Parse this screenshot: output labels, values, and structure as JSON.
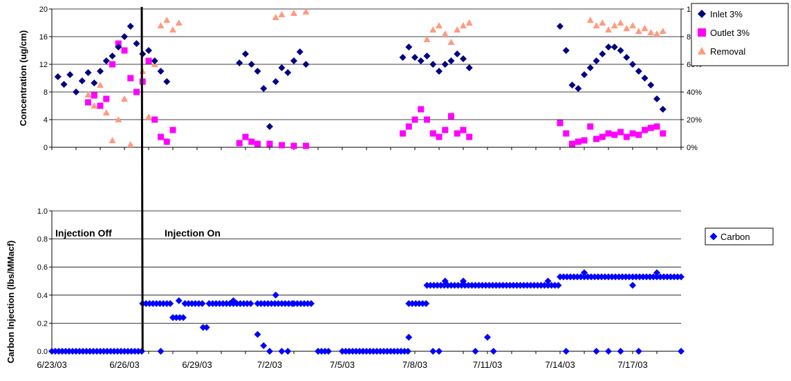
{
  "chart_data": [
    {
      "type": "scatter",
      "ylabel": "Concentration (ug/cm)",
      "ylim": [
        0,
        20
      ],
      "yticks": [
        "0",
        "4",
        "8",
        "12",
        "16",
        "20"
      ],
      "y2lim": [
        0,
        100
      ],
      "y2ticks": [
        "0%",
        "20%",
        "40%",
        "60%",
        "80%",
        "100%"
      ],
      "xlim": [
        "6/23/03",
        "7/19/03"
      ],
      "grid": true,
      "legend_position": "right",
      "series": [
        {
          "name": "Inlet 3%",
          "color": "#000080",
          "marker": "diamond",
          "axis": "left",
          "points": [
            [
              "6/23/03 06:00",
              10.2
            ],
            [
              "6/23/03 12:00",
              9.1
            ],
            [
              "6/23/03 18:00",
              10.5
            ],
            [
              "6/24/03 00:00",
              8.0
            ],
            [
              "6/24/03 06:00",
              9.6
            ],
            [
              "6/24/03 12:00",
              10.8
            ],
            [
              "6/24/03 18:00",
              9.3
            ],
            [
              "6/25/03 00:00",
              11.0
            ],
            [
              "6/25/03 06:00",
              12.5
            ],
            [
              "6/25/03 12:00",
              13.2
            ],
            [
              "6/25/03 18:00",
              14.5
            ],
            [
              "6/26/03 00:00",
              16.0
            ],
            [
              "6/26/03 06:00",
              17.5
            ],
            [
              "6/26/03 12:00",
              15.0
            ],
            [
              "6/26/03 18:00",
              13.5
            ],
            [
              "6/27/03 00:00",
              14.0
            ],
            [
              "6/27/03 06:00",
              12.5
            ],
            [
              "6/27/03 12:00",
              11.0
            ],
            [
              "6/27/03 18:00",
              9.5
            ],
            [
              "6/30/03 18:00",
              12.2
            ],
            [
              "7/1/03 00:00",
              13.5
            ],
            [
              "7/1/03 06:00",
              12.0
            ],
            [
              "7/1/03 12:00",
              11.0
            ],
            [
              "7/1/03 18:00",
              8.5
            ],
            [
              "7/2/03 00:00",
              3.0
            ],
            [
              "7/2/03 06:00",
              9.5
            ],
            [
              "7/2/03 12:00",
              11.5
            ],
            [
              "7/2/03 18:00",
              10.8
            ],
            [
              "7/3/03 00:00",
              12.5
            ],
            [
              "7/3/03 06:00",
              13.8
            ],
            [
              "7/3/03 12:00",
              12.0
            ],
            [
              "7/7/03 12:00",
              13.0
            ],
            [
              "7/7/03 18:00",
              14.5
            ],
            [
              "7/8/03 00:00",
              13.0
            ],
            [
              "7/8/03 06:00",
              12.5
            ],
            [
              "7/8/03 12:00",
              13.2
            ],
            [
              "7/8/03 18:00",
              12.0
            ],
            [
              "7/9/03 00:00",
              11.0
            ],
            [
              "7/9/03 06:00",
              12.0
            ],
            [
              "7/9/03 12:00",
              12.5
            ],
            [
              "7/9/03 18:00",
              13.5
            ],
            [
              "7/10/03 00:00",
              12.8
            ],
            [
              "7/10/03 06:00",
              11.5
            ],
            [
              "7/14/03 00:00",
              17.5
            ],
            [
              "7/14/03 06:00",
              14.0
            ],
            [
              "7/14/03 12:00",
              9.0
            ],
            [
              "7/14/03 18:00",
              8.5
            ],
            [
              "7/15/03 00:00",
              10.5
            ],
            [
              "7/15/03 06:00",
              11.5
            ],
            [
              "7/15/03 12:00",
              12.5
            ],
            [
              "7/15/03 18:00",
              13.5
            ],
            [
              "7/16/03 00:00",
              14.5
            ],
            [
              "7/16/03 06:00",
              14.5
            ],
            [
              "7/16/03 12:00",
              14.0
            ],
            [
              "7/16/03 18:00",
              13.0
            ],
            [
              "7/17/03 00:00",
              12.0
            ],
            [
              "7/17/03 06:00",
              11.0
            ],
            [
              "7/17/03 12:00",
              10.0
            ],
            [
              "7/17/03 18:00",
              9.0
            ],
            [
              "7/18/03 00:00",
              7.0
            ],
            [
              "7/18/03 06:00",
              5.5
            ]
          ]
        },
        {
          "name": "Outlet 3%",
          "color": "#ff00ff",
          "marker": "square",
          "axis": "left",
          "points": [
            [
              "6/24/03 12:00",
              6.5
            ],
            [
              "6/24/03 18:00",
              7.5
            ],
            [
              "6/25/03 00:00",
              6.0
            ],
            [
              "6/25/03 06:00",
              7.0
            ],
            [
              "6/25/03 12:00",
              12.0
            ],
            [
              "6/25/03 18:00",
              15.0
            ],
            [
              "6/26/03 00:00",
              14.0
            ],
            [
              "6/26/03 06:00",
              10.0
            ],
            [
              "6/26/03 12:00",
              8.0
            ],
            [
              "6/26/03 18:00",
              9.5
            ],
            [
              "6/27/03 00:00",
              12.5
            ],
            [
              "6/27/03 06:00",
              4.0
            ],
            [
              "6/27/03 12:00",
              1.5
            ],
            [
              "6/27/03 18:00",
              0.8
            ],
            [
              "6/28/03 00:00",
              2.5
            ],
            [
              "6/30/03 18:00",
              0.6
            ],
            [
              "7/1/03 00:00",
              1.5
            ],
            [
              "7/1/03 06:00",
              0.8
            ],
            [
              "7/1/03 12:00",
              0.5
            ],
            [
              "7/2/03 00:00",
              0.5
            ],
            [
              "7/2/03 12:00",
              0.3
            ],
            [
              "7/3/03 00:00",
              0.2
            ],
            [
              "7/3/03 12:00",
              0.2
            ],
            [
              "7/7/03 12:00",
              2.0
            ],
            [
              "7/7/03 18:00",
              3.0
            ],
            [
              "7/8/03 00:00",
              4.0
            ],
            [
              "7/8/03 06:00",
              5.5
            ],
            [
              "7/8/03 12:00",
              4.0
            ],
            [
              "7/8/03 18:00",
              2.0
            ],
            [
              "7/9/03 00:00",
              1.5
            ],
            [
              "7/9/03 06:00",
              2.5
            ],
            [
              "7/9/03 12:00",
              4.5
            ],
            [
              "7/9/03 18:00",
              2.0
            ],
            [
              "7/10/03 00:00",
              2.5
            ],
            [
              "7/10/03 06:00",
              1.5
            ],
            [
              "7/14/03 00:00",
              3.5
            ],
            [
              "7/14/03 06:00",
              2.0
            ],
            [
              "7/14/03 12:00",
              0.5
            ],
            [
              "7/14/03 18:00",
              0.8
            ],
            [
              "7/15/03 00:00",
              1.0
            ],
            [
              "7/15/03 06:00",
              3.0
            ],
            [
              "7/15/03 12:00",
              1.2
            ],
            [
              "7/15/03 18:00",
              1.5
            ],
            [
              "7/16/03 00:00",
              2.0
            ],
            [
              "7/16/03 06:00",
              1.8
            ],
            [
              "7/16/03 12:00",
              2.2
            ],
            [
              "7/16/03 18:00",
              1.5
            ],
            [
              "7/17/03 00:00",
              2.0
            ],
            [
              "7/17/03 06:00",
              1.8
            ],
            [
              "7/17/03 12:00",
              2.5
            ],
            [
              "7/17/03 18:00",
              2.8
            ],
            [
              "7/18/03 00:00",
              3.0
            ],
            [
              "7/18/03 06:00",
              2.0
            ]
          ]
        },
        {
          "name": "Removal",
          "color": "#ff9a80",
          "marker": "triangle",
          "axis": "right",
          "points": [
            [
              "6/24/03 12:00",
              38
            ],
            [
              "6/24/03 18:00",
              30
            ],
            [
              "6/25/03 00:00",
              45
            ],
            [
              "6/25/03 06:00",
              25
            ],
            [
              "6/25/03 12:00",
              5
            ],
            [
              "6/25/03 18:00",
              20
            ],
            [
              "6/26/03 00:00",
              35
            ],
            [
              "6/26/03 06:00",
              2
            ],
            [
              "6/26/03 12:00",
              40
            ],
            [
              "6/26/03 18:00",
              55
            ],
            [
              "6/27/03 00:00",
              22
            ],
            [
              "6/27/03 06:00",
              60
            ],
            [
              "6/27/03 12:00",
              88
            ],
            [
              "6/27/03 18:00",
              92
            ],
            [
              "6/28/03 00:00",
              85
            ],
            [
              "6/28/03 06:00",
              90
            ],
            [
              "7/2/03 06:00",
              94
            ],
            [
              "7/2/03 12:00",
              96
            ],
            [
              "7/3/03 00:00",
              97
            ],
            [
              "7/3/03 12:00",
              98
            ],
            [
              "7/8/03 12:00",
              78
            ],
            [
              "7/8/03 18:00",
              85
            ],
            [
              "7/9/03 00:00",
              88
            ],
            [
              "7/9/03 06:00",
              82
            ],
            [
              "7/9/03 12:00",
              76
            ],
            [
              "7/9/03 18:00",
              85
            ],
            [
              "7/10/03 00:00",
              88
            ],
            [
              "7/10/03 06:00",
              90
            ],
            [
              "7/15/03 06:00",
              92
            ],
            [
              "7/15/03 12:00",
              88
            ],
            [
              "7/15/03 18:00",
              90
            ],
            [
              "7/16/03 00:00",
              85
            ],
            [
              "7/16/03 06:00",
              88
            ],
            [
              "7/16/03 12:00",
              90
            ],
            [
              "7/16/03 18:00",
              86
            ],
            [
              "7/17/03 00:00",
              88
            ],
            [
              "7/17/03 06:00",
              84
            ],
            [
              "7/17/03 12:00",
              86
            ],
            [
              "7/17/03 18:00",
              83
            ],
            [
              "7/18/03 00:00",
              82
            ],
            [
              "7/18/03 06:00",
              84
            ]
          ]
        }
      ]
    },
    {
      "type": "scatter",
      "ylabel": "Carbon Injection (lbs/MMacf)",
      "ylim": [
        0,
        1
      ],
      "yticks": [
        "0.0",
        "0.2",
        "0.4",
        "0.6",
        "0.8",
        "1.0"
      ],
      "xlim": [
        "6/23/03",
        "7/19/03"
      ],
      "xticks": [
        "6/23/03",
        "6/26/03",
        "6/29/03",
        "7/2/03",
        "7/5/03",
        "7/8/03",
        "7/11/03",
        "7/14/03",
        "7/17/03"
      ],
      "grid": true,
      "legend_position": "right",
      "annotations": [
        "Injection Off",
        "Injection On"
      ],
      "event_line": "6/26/03 18:00",
      "series": [
        {
          "name": "Carbon",
          "color": "#0000ff",
          "marker": "diamond",
          "segments": [
            {
              "from": "6/23/03",
              "to": "6/26/03 18:00",
              "value": 0.0
            },
            {
              "from": "6/26/03 18:00",
              "to": "6/28/03 00:00",
              "value": 0.34
            },
            {
              "from": "6/28/03 00:00",
              "to": "6/28/03 12:00",
              "value": 0.24
            },
            {
              "from": "6/28/03 12:00",
              "to": "6/29/03 06:00",
              "value": 0.34
            },
            {
              "from": "6/29/03 06:00",
              "to": "6/29/03 12:00",
              "value": 0.17
            },
            {
              "from": "6/29/03 12:00",
              "to": "7/1/03 06:00",
              "value": 0.34
            },
            {
              "from": "7/1/03 12:00",
              "to": "7/3/03 00:00",
              "value": 0.34
            },
            {
              "from": "7/3/03 00:00",
              "to": "7/3/03 18:00",
              "value": 0.34
            },
            {
              "from": "7/4/03 00:00",
              "to": "7/4/03 12:00",
              "value": 0.0
            },
            {
              "from": "7/5/03 00:00",
              "to": "7/7/03 18:00",
              "value": 0.0
            },
            {
              "from": "7/7/03 18:00",
              "to": "7/8/03 12:00",
              "value": 0.34
            },
            {
              "from": "7/8/03 12:00",
              "to": "7/14/03 00:00",
              "value": 0.47
            },
            {
              "from": "7/14/03 00:00",
              "to": "7/19/03 00:00",
              "value": 0.53
            }
          ],
          "points": [
            [
              "6/27/03 12:00",
              0.0
            ],
            [
              "6/28/03 06:00",
              0.36
            ],
            [
              "6/30/03 12:00",
              0.36
            ],
            [
              "7/1/03 12:00",
              0.12
            ],
            [
              "7/1/03 18:00",
              0.04
            ],
            [
              "7/2/03 00:00",
              0.0
            ],
            [
              "7/2/03 06:00",
              0.4
            ],
            [
              "7/2/03 12:00",
              0.0
            ],
            [
              "7/2/03 18:00",
              0.0
            ],
            [
              "7/7/03 18:00",
              0.1
            ],
            [
              "7/8/03 18:00",
              0.0
            ],
            [
              "7/9/03 00:00",
              0.0
            ],
            [
              "7/9/03 06:00",
              0.5
            ],
            [
              "7/10/03 00:00",
              0.5
            ],
            [
              "7/10/03 12:00",
              0.0
            ],
            [
              "7/11/03 00:00",
              0.1
            ],
            [
              "7/11/03 06:00",
              0.0
            ],
            [
              "7/13/03 12:00",
              0.5
            ],
            [
              "7/14/03 06:00",
              0.0
            ],
            [
              "7/15/03 00:00",
              0.56
            ],
            [
              "7/15/03 12:00",
              0.0
            ],
            [
              "7/16/03 00:00",
              0.0
            ],
            [
              "7/16/03 12:00",
              0.0
            ],
            [
              "7/17/03 00:00",
              0.47
            ],
            [
              "7/17/03 06:00",
              0.0
            ],
            [
              "7/18/03 00:00",
              0.56
            ],
            [
              "7/19/03 00:00",
              0.0
            ]
          ]
        }
      ]
    }
  ]
}
